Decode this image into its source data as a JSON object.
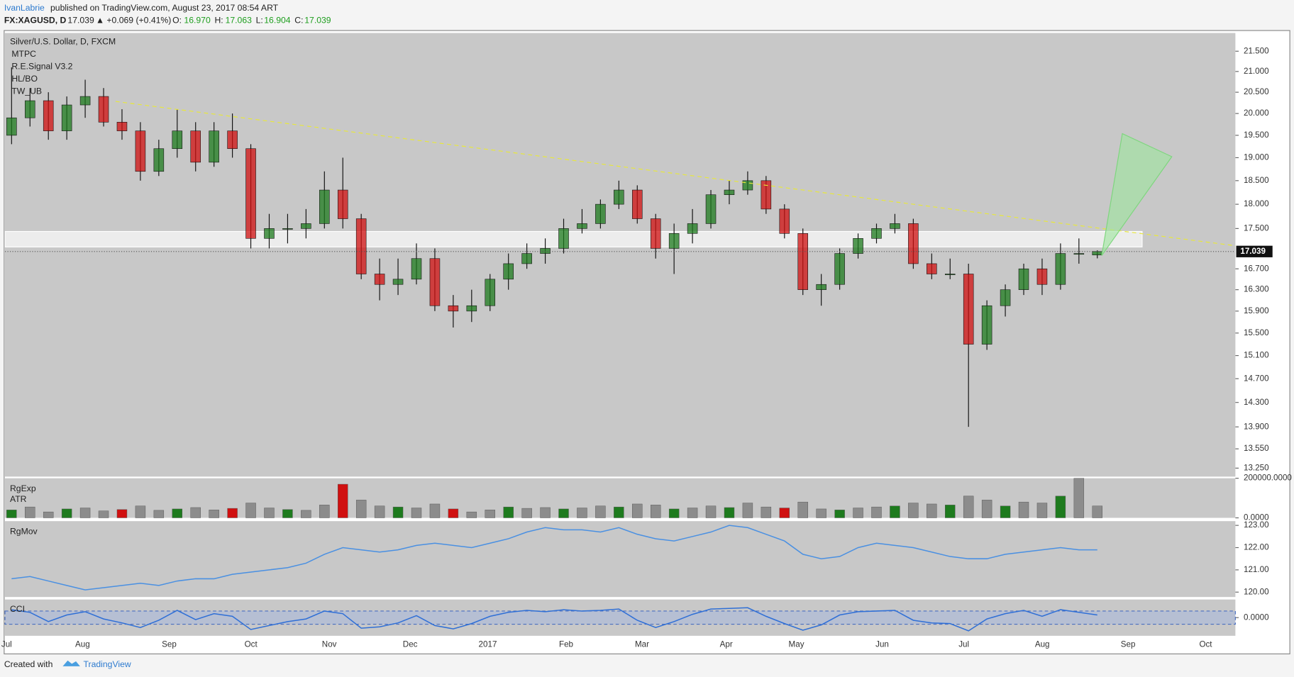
{
  "header": {
    "author": "IvanLabrie",
    "published": "published on TradingView.com, August 23, 2017 08:54 ART",
    "symbol": "FX:XAGUSD, D",
    "last": "17.039",
    "change": "▲ +0.069 (+0.41%)",
    "o_label": "O:",
    "o": "16.970",
    "h_label": "H:",
    "h": "17.063",
    "l_label": "L:",
    "l": "16.904",
    "c_label": "C:",
    "c": "17.039"
  },
  "chart_data": [
    {
      "type": "candlestick",
      "title": "Silver/U.S. Dollar, D, FXCM",
      "indicators": [
        "MTPC",
        "R.E.Signal V3.2",
        "HL/BO",
        "TW_UB"
      ],
      "x_labels": [
        "Jul",
        "Aug",
        "Sep",
        "Oct",
        "Nov",
        "Dec",
        "2017",
        "Feb",
        "Mar",
        "Apr",
        "May",
        "Jun",
        "Jul",
        "Aug",
        "Sep",
        "Oct"
      ],
      "open": [
        19.5,
        19.9,
        20.3,
        19.6,
        20.2,
        20.4,
        19.8,
        19.6,
        18.7,
        19.2,
        19.6,
        18.9,
        19.6,
        19.2,
        17.3,
        17.5,
        17.5,
        17.6,
        18.3,
        17.7,
        16.6,
        16.4,
        16.5,
        16.9,
        16.0,
        15.9,
        16.0,
        16.5,
        16.8,
        17.0,
        17.1,
        17.5,
        17.6,
        18.0,
        18.3,
        17.7,
        17.1,
        17.4,
        17.6,
        18.2,
        18.3,
        18.5,
        17.9,
        17.4,
        16.3,
        16.4,
        17.0,
        17.3,
        17.5,
        17.6,
        16.8,
        16.6,
        16.6,
        15.3,
        16.0,
        16.3,
        16.7,
        16.4,
        17.0,
        16.97
      ],
      "high": [
        21.1,
        20.6,
        20.5,
        20.4,
        20.8,
        20.6,
        20.1,
        19.8,
        19.4,
        20.1,
        19.8,
        19.8,
        20.0,
        19.3,
        17.8,
        17.8,
        17.9,
        18.7,
        19.0,
        17.8,
        16.9,
        16.9,
        17.2,
        17.1,
        16.2,
        16.3,
        16.6,
        17.0,
        17.2,
        17.3,
        17.7,
        17.9,
        18.1,
        18.5,
        18.4,
        17.8,
        17.6,
        17.9,
        18.3,
        18.5,
        18.7,
        18.6,
        18.0,
        17.5,
        16.6,
        17.1,
        17.4,
        17.6,
        17.8,
        17.7,
        17.0,
        16.9,
        16.8,
        16.1,
        16.4,
        16.8,
        16.9,
        17.2,
        17.3,
        17.063
      ],
      "low": [
        19.3,
        19.7,
        19.4,
        19.4,
        19.9,
        19.7,
        19.4,
        18.5,
        18.6,
        19.0,
        18.7,
        18.8,
        19.0,
        17.1,
        17.1,
        17.2,
        17.3,
        17.5,
        17.5,
        16.5,
        16.1,
        16.2,
        16.4,
        15.9,
        15.6,
        15.7,
        15.9,
        16.3,
        16.7,
        16.8,
        17.0,
        17.4,
        17.5,
        17.9,
        17.6,
        16.9,
        16.6,
        17.2,
        17.5,
        18.0,
        18.2,
        17.8,
        17.3,
        16.2,
        16.0,
        16.3,
        16.9,
        17.2,
        17.4,
        16.7,
        16.5,
        16.5,
        13.9,
        15.2,
        15.8,
        16.2,
        16.2,
        16.3,
        16.8,
        16.904
      ],
      "close": [
        19.9,
        20.3,
        19.6,
        20.2,
        20.4,
        19.8,
        19.6,
        18.7,
        19.2,
        19.6,
        18.9,
        19.6,
        19.2,
        17.3,
        17.5,
        17.5,
        17.6,
        18.3,
        17.7,
        16.6,
        16.4,
        16.5,
        16.9,
        16.0,
        15.9,
        16.0,
        16.5,
        16.8,
        17.0,
        17.1,
        17.5,
        17.6,
        18.0,
        18.3,
        17.7,
        17.1,
        17.4,
        17.6,
        18.2,
        18.3,
        18.5,
        17.9,
        17.4,
        16.3,
        16.4,
        17.0,
        17.3,
        17.5,
        17.6,
        16.8,
        16.6,
        16.6,
        15.3,
        16.0,
        16.3,
        16.7,
        16.4,
        17.0,
        17.0,
        17.039
      ],
      "up_color": "#1e7b1e",
      "down_color": "#d01010",
      "log_scale": true,
      "ylim": [
        13.12,
        21.96
      ],
      "yticks": [
        {
          "value": 21.5,
          "label": "21.500"
        },
        {
          "value": 21,
          "label": "21.000"
        },
        {
          "value": 20.5,
          "label": "20.500"
        },
        {
          "value": 20,
          "label": "20.000"
        },
        {
          "value": 19.5,
          "label": "19.500"
        },
        {
          "value": 19,
          "label": "19.000"
        },
        {
          "value": 18.5,
          "label": "18.500"
        },
        {
          "value": 18,
          "label": "18.000"
        },
        {
          "value": 17.5,
          "label": "17.500"
        },
        {
          "value": 16.7,
          "label": "16.700"
        },
        {
          "value": 16.3,
          "label": "16.300"
        },
        {
          "value": 15.9,
          "label": "15.900"
        },
        {
          "value": 15.5,
          "label": "15.500"
        },
        {
          "value": 15.1,
          "label": "15.100"
        },
        {
          "value": 14.7,
          "label": "14.700"
        },
        {
          "value": 14.3,
          "label": "14.300"
        },
        {
          "value": 13.9,
          "label": "13.900"
        },
        {
          "value": 13.55,
          "label": "13.550"
        },
        {
          "value": 13.25,
          "label": "13.250"
        }
      ],
      "zone": [
        17.13,
        17.44
      ],
      "last_price": {
        "value": 17.039,
        "label": "17.039"
      }
    },
    {
      "type": "bar",
      "title": "RgExp",
      "subtitle": "ATR",
      "color": "#8c8c8c",
      "values": [
        40000,
        55000,
        30000,
        45000,
        50000,
        35000,
        42000,
        60000,
        38000,
        45000,
        52000,
        40000,
        48000,
        75000,
        50000,
        42000,
        38000,
        65000,
        170000,
        90000,
        60000,
        55000,
        50000,
        70000,
        45000,
        30000,
        40000,
        55000,
        48000,
        52000,
        45000,
        50000,
        60000,
        55000,
        70000,
        65000,
        45000,
        50000,
        60000,
        52000,
        75000,
        55000,
        50000,
        80000,
        45000,
        40000,
        50000,
        55000,
        60000,
        75000,
        70000,
        65000,
        110000,
        90000,
        60000,
        80000,
        75000,
        110000,
        200000,
        60000
      ],
      "ylim": [
        0,
        200000
      ],
      "yticks": [
        {
          "value": 200000,
          "label": "200000.0000"
        },
        {
          "value": 0,
          "label": "0.0000"
        }
      ]
    },
    {
      "type": "line",
      "title": "RgMov",
      "color": "#4a90e2",
      "values": [
        120.6,
        120.7,
        120.5,
        120.3,
        120.1,
        120.2,
        120.3,
        120.4,
        120.3,
        120.5,
        120.6,
        120.6,
        120.8,
        120.9,
        121.0,
        121.1,
        121.3,
        121.7,
        122.0,
        121.9,
        121.8,
        121.9,
        122.1,
        122.2,
        122.1,
        122.0,
        122.2,
        122.4,
        122.7,
        122.9,
        122.8,
        122.8,
        122.7,
        122.9,
        122.6,
        122.4,
        122.3,
        122.5,
        122.7,
        123.0,
        122.9,
        122.6,
        122.3,
        121.7,
        121.5,
        121.6,
        122.0,
        122.2,
        122.1,
        122.0,
        121.8,
        121.6,
        121.5,
        121.5,
        121.7,
        121.8,
        121.9,
        122.0,
        121.9,
        121.9
      ],
      "ylim": [
        119.78,
        123.19
      ],
      "yticks": [
        {
          "value": 123,
          "label": "123.00"
        },
        {
          "value": 122,
          "label": "122.00"
        },
        {
          "value": 121,
          "label": "121.00"
        },
        {
          "value": 120,
          "label": "120.00"
        }
      ]
    },
    {
      "type": "line",
      "title": "CCI",
      "color": "#2f6fd6",
      "values": [
        120,
        80,
        -60,
        40,
        90,
        -20,
        -80,
        -150,
        -40,
        110,
        -30,
        60,
        20,
        -180,
        -120,
        -60,
        -20,
        100,
        60,
        -160,
        -140,
        -80,
        30,
        -120,
        -170,
        -90,
        20,
        80,
        110,
        90,
        120,
        100,
        110,
        130,
        -40,
        -150,
        -60,
        50,
        130,
        140,
        150,
        20,
        -90,
        -190,
        -110,
        40,
        90,
        100,
        110,
        -40,
        -80,
        -90,
        -200,
        -20,
        60,
        110,
        20,
        120,
        80,
        40
      ],
      "band": [
        -100,
        100
      ],
      "ylim": [
        -275,
        275
      ],
      "yticks": [
        {
          "value": 0,
          "label": "0.0000"
        }
      ]
    }
  ],
  "footer": {
    "created": "Created with",
    "brand": "TradingView"
  }
}
